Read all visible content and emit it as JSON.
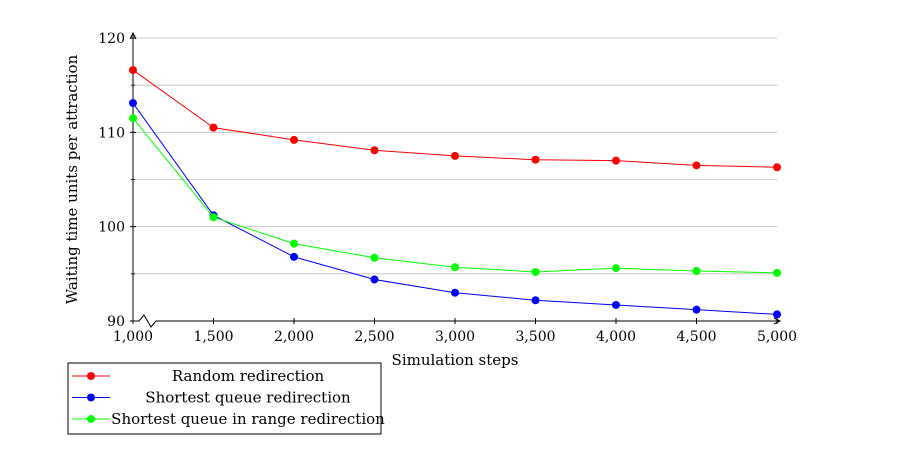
{
  "chart_data": {
    "type": "line",
    "title": "",
    "xlabel": "Simulation steps",
    "ylabel": "Waiting time units per attraction",
    "x": [
      1000,
      1500,
      2000,
      2500,
      3000,
      3500,
      4000,
      4500,
      5000
    ],
    "x_tick_labels": [
      "1,000",
      "1,500",
      "2,000",
      "2,500",
      "3,000",
      "3,500",
      "4,000",
      "4,500",
      "5,000"
    ],
    "xlim": [
      1000,
      5000
    ],
    "ylim": [
      90,
      120
    ],
    "y_ticks": [
      90,
      100,
      110,
      120
    ],
    "y_tick_labels": [
      "90",
      "100",
      "110",
      "120"
    ],
    "grid": "horizontal",
    "legend_position": "below-left",
    "series": [
      {
        "name": "Random redirection",
        "color": "#ff0000",
        "values": [
          116.6,
          110.5,
          109.2,
          108.1,
          107.5,
          107.1,
          107.0,
          106.5,
          106.3
        ]
      },
      {
        "name": "Shortest queue redirection",
        "color": "#0000ff",
        "values": [
          113.1,
          101.2,
          96.8,
          94.4,
          93.0,
          92.2,
          91.7,
          91.2,
          90.7
        ]
      },
      {
        "name": "Shortest queue in range redirection",
        "color": "#00ff00",
        "values": [
          111.5,
          101.0,
          98.2,
          96.7,
          95.7,
          95.2,
          95.6,
          95.3,
          95.1
        ]
      }
    ]
  }
}
